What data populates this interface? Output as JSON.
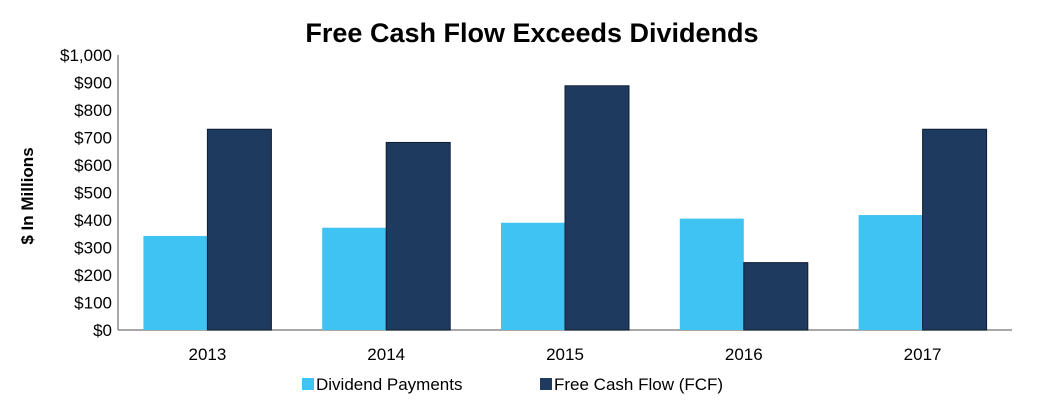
{
  "chart_data": {
    "type": "bar",
    "title": "Free Cash Flow Exceeds Dividends",
    "xlabel": "",
    "ylabel": "$ In Millions",
    "categories": [
      "2013",
      "2014",
      "2015",
      "2016",
      "2017"
    ],
    "series": [
      {
        "name": "Dividend Payments",
        "color": "#3FC3F2",
        "values": [
          342,
          372,
          390,
          405,
          418
        ]
      },
      {
        "name": "Free Cash Flow (FCF)",
        "color": "#1F3A5F",
        "values": [
          730,
          682,
          888,
          245,
          730
        ]
      }
    ],
    "ylim": [
      0,
      1000
    ],
    "yticks": [
      0,
      100,
      200,
      300,
      400,
      500,
      600,
      700,
      800,
      900,
      1000
    ],
    "ytick_labels": [
      "$0",
      "$100",
      "$200",
      "$300",
      "$400",
      "$500",
      "$600",
      "$700",
      "$800",
      "$900",
      "$1,000"
    ],
    "grid": false,
    "legend_position": "bottom"
  }
}
